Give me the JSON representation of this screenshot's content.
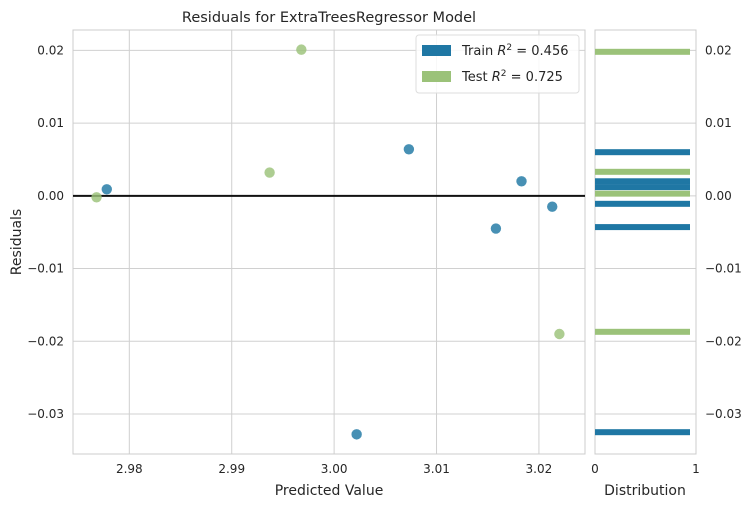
{
  "chart_data": {
    "type": "scatter",
    "title": "Residuals for ExtraTreesRegressor Model",
    "xlabel": "Predicted Value",
    "ylabel": "Residuals",
    "xlim": [
      2.9745,
      3.0245
    ],
    "ylim": [
      -0.0355,
      0.0228
    ],
    "xticks": [
      2.98,
      2.99,
      3.0,
      3.01,
      3.02
    ],
    "xtick_labels": [
      "2.98",
      "2.99",
      "3.00",
      "3.01",
      "3.02"
    ],
    "yticks": [
      0.02,
      0.01,
      0.0,
      -0.01,
      -0.02,
      -0.03
    ],
    "ytick_labels": [
      "0.02",
      "0.01",
      "0.00",
      "−0.01",
      "−0.02",
      "−0.03"
    ],
    "grid": true,
    "legend_position": "top-right",
    "series": [
      {
        "name": "Train",
        "r2_label": "Train R² = 0.456",
        "color": "#1f77a4",
        "points": [
          {
            "x": 2.9778,
            "y": 0.0009
          },
          {
            "x": 3.0022,
            "y": -0.0328
          },
          {
            "x": 3.0073,
            "y": 0.0064
          },
          {
            "x": 3.0158,
            "y": -0.0045
          },
          {
            "x": 3.0183,
            "y": 0.002
          },
          {
            "x": 3.0213,
            "y": -0.0015
          }
        ]
      },
      {
        "name": "Test",
        "r2_label": "Test R² = 0.725",
        "color": "#9bc279",
        "points": [
          {
            "x": 2.9768,
            "y": -0.0002
          },
          {
            "x": 2.9937,
            "y": 0.0032
          },
          {
            "x": 2.9968,
            "y": 0.0201
          },
          {
            "x": 3.022,
            "y": -0.019
          }
        ]
      }
    ],
    "distribution": {
      "xlabel": "Distribution",
      "xlim": [
        0,
        1
      ],
      "xtick_labels": [
        "0",
        "1"
      ],
      "train_bars": [
        0.006,
        0.002,
        0.0012,
        -0.0011,
        -0.0043,
        -0.0325
      ],
      "test_bars": [
        0.0198,
        0.0033,
        0.0003,
        -0.0187
      ]
    }
  },
  "legend": {
    "train_prefix": "Train ",
    "train_value": " = 0.456",
    "test_prefix": "Test ",
    "test_value": " = 0.725",
    "r": "R",
    "sup": "2"
  }
}
